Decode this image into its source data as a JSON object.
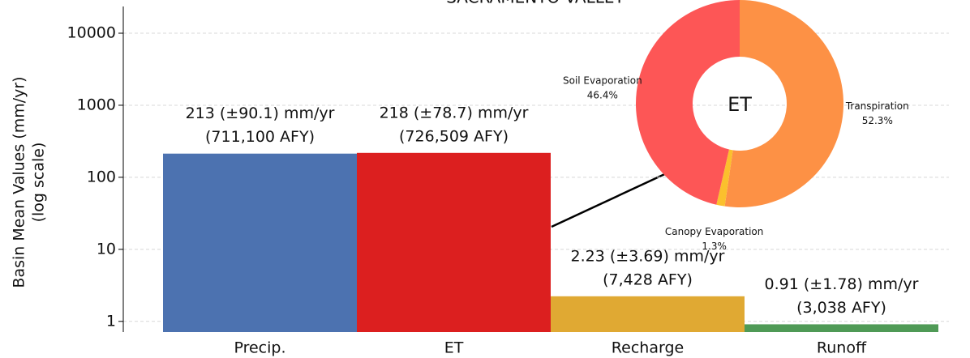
{
  "chart_data": [
    {
      "type": "bar",
      "title": "SACRAMENTO VALLEY",
      "ylabel": [
        "Basin Mean Values (mm/yr)",
        "(log scale)"
      ],
      "categories": [
        "Precip.",
        "ET",
        "Recharge",
        "Runoff"
      ],
      "values": [
        213,
        218,
        2.23,
        0.91
      ],
      "value_labels": [
        [
          "213 (±90.1) mm/yr",
          "(711,100 AFY)"
        ],
        [
          "218 (±78.7) mm/yr",
          "(726,509 AFY)"
        ],
        [
          "2.23 (±3.69) mm/yr",
          "(7,428 AFY)"
        ],
        [
          "0.91 (±1.78) mm/yr",
          "(3,038 AFY)"
        ]
      ],
      "colors": [
        "#4c72b0",
        "#dc1f1f",
        "#e0a933",
        "#4f9a56"
      ],
      "log_scale": true,
      "ylim": [
        0.71,
        23500
      ],
      "yticks": [
        1,
        10,
        100,
        1000,
        10000
      ],
      "grid": true
    },
    {
      "type": "pie",
      "center_label": "ET",
      "categories": [
        "Transpiration",
        "Canopy Evaporation",
        "Soil Evaporation"
      ],
      "values": [
        52.3,
        1.3,
        46.4
      ],
      "value_labels": [
        "52.3%",
        "1.3%",
        "46.4%"
      ],
      "colors": [
        "#fd9145",
        "#fbc02d",
        "#fd5656"
      ],
      "donut": true
    }
  ]
}
